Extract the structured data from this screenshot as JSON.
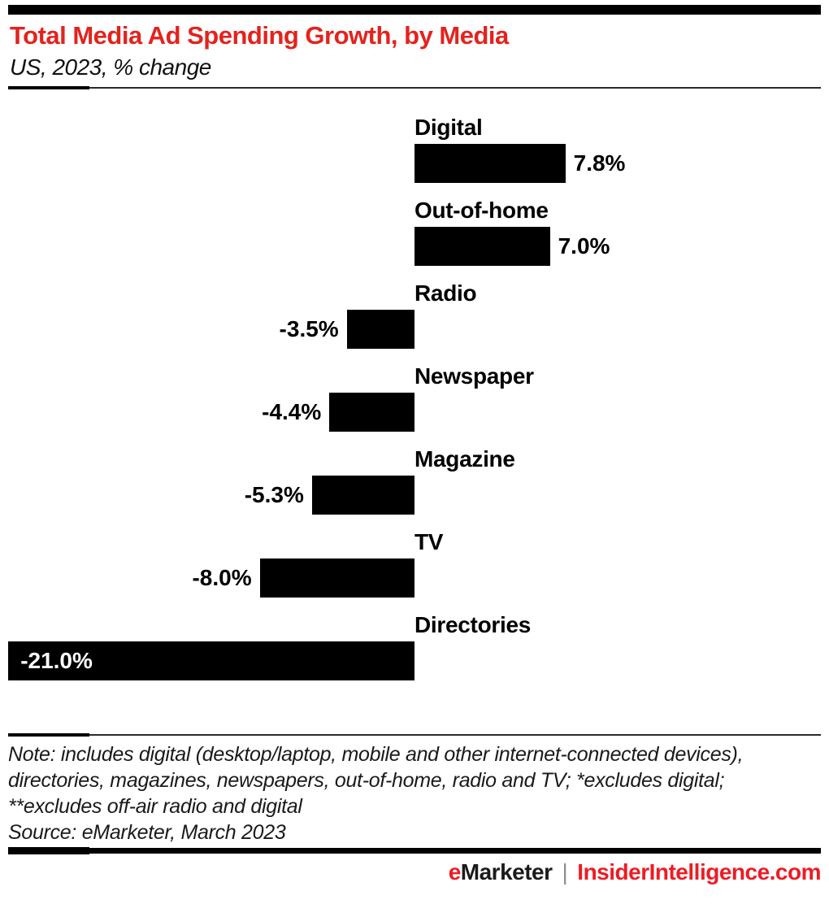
{
  "chart_data": {
    "type": "bar",
    "orientation": "horizontal",
    "title": "Total Media Ad Spending Growth, by Media",
    "subtitle": "US, 2023, % change",
    "categories": [
      "Digital",
      "Out-of-home",
      "Radio",
      "Newspaper",
      "Magazine",
      "TV",
      "Directories"
    ],
    "values": [
      7.8,
      7.0,
      -3.5,
      -4.4,
      -5.3,
      -8.0,
      -21.0
    ],
    "value_labels": [
      "7.8%",
      "7.0%",
      "-3.5%",
      "-4.4%",
      "-5.3%",
      "-8.0%",
      "-21.0%"
    ],
    "unit": "% change",
    "xlim": [
      -21.0,
      7.8
    ],
    "grid": false,
    "legend": "none",
    "bar_color": "#000000",
    "value_label_inside": [
      false,
      false,
      false,
      false,
      false,
      false,
      true
    ]
  },
  "footer": {
    "note_lines": [
      "Note: includes digital (desktop/laptop, mobile and other internet-connected devices),",
      "directories, magazines, newspapers, out-of-home, radio and TV; *excludes digital;",
      "**excludes off-air radio and digital"
    ],
    "source": "Source: eMarketer, March 2023",
    "brand_e": "e",
    "brand_rest": "Marketer",
    "brand_divider": "|",
    "brand_site": "InsiderIntelligence.com"
  },
  "colors": {
    "accent_red": "#e3231e",
    "brand_red": "#ed1c24",
    "bar_black": "#000000",
    "divider_gray": "#8f8f8f"
  }
}
